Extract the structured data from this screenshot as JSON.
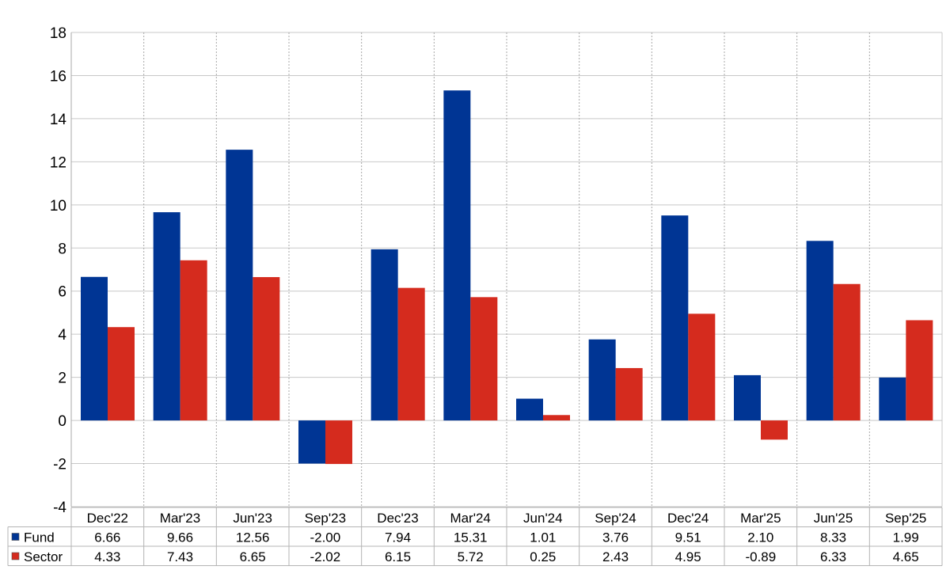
{
  "chart_data": {
    "type": "bar",
    "categories": [
      "Dec'22",
      "Mar'23",
      "Jun'23",
      "Sep'23",
      "Dec'23",
      "Mar'24",
      "Jun'24",
      "Sep'24",
      "Dec'24",
      "Mar'25",
      "Jun'25",
      "Sep'25"
    ],
    "series": [
      {
        "name": "Fund",
        "color": "#003594",
        "values": [
          6.66,
          9.66,
          12.56,
          -2.0,
          7.94,
          15.31,
          1.01,
          3.76,
          9.51,
          2.1,
          8.33,
          1.99
        ],
        "labels": [
          "6.66",
          "9.66",
          "12.56",
          "-2.00",
          "7.94",
          "15.31",
          "1.01",
          "3.76",
          "9.51",
          "2.10",
          "8.33",
          "1.99"
        ]
      },
      {
        "name": "Sector",
        "color": "#d52b1e",
        "values": [
          4.33,
          7.43,
          6.65,
          -2.02,
          6.15,
          5.72,
          0.25,
          2.43,
          4.95,
          -0.89,
          6.33,
          4.65
        ],
        "labels": [
          "4.33",
          "7.43",
          "6.65",
          "-2.02",
          "6.15",
          "5.72",
          "0.25",
          "2.43",
          "4.95",
          "-0.89",
          "6.33",
          "4.65"
        ]
      }
    ],
    "ylim": [
      -4,
      18
    ],
    "yticks": [
      -4,
      -2,
      0,
      2,
      4,
      6,
      8,
      10,
      12,
      14,
      16,
      18
    ],
    "ytick_labels": [
      "-4",
      "-2",
      "0",
      "2",
      "4",
      "6",
      "8",
      "10",
      "12",
      "14",
      "16",
      "18"
    ],
    "negative_label_color": "#ff0000",
    "grid": true,
    "legend": "data-table-below"
  }
}
